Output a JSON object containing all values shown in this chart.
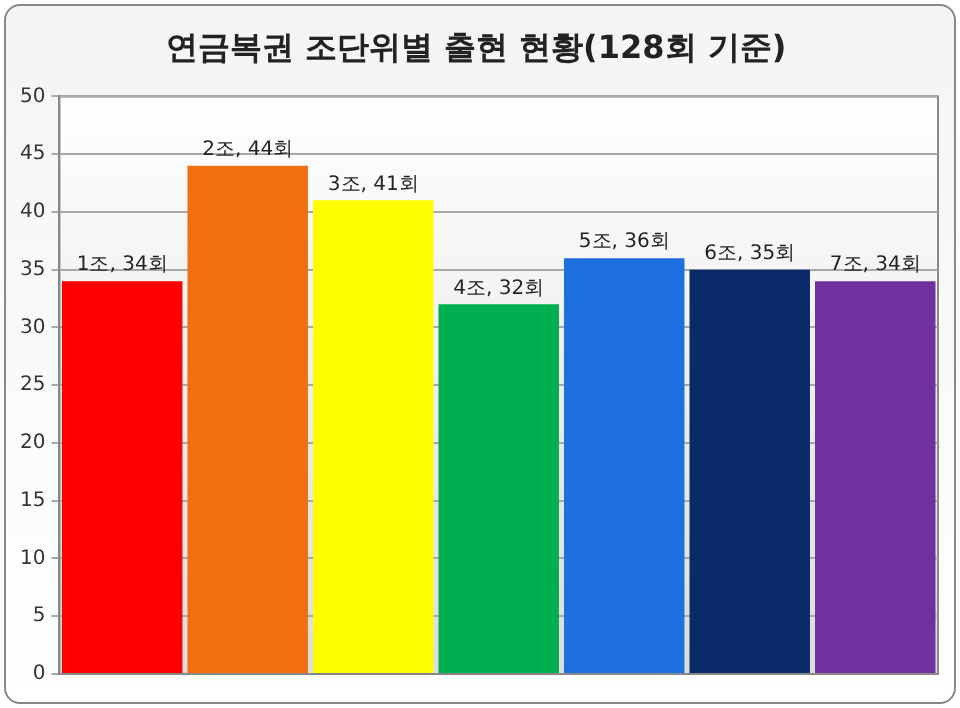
{
  "chart_data": {
    "type": "bar",
    "title": "연금복권 조단위별 출현 현황(128회 기준)",
    "categories": [
      null,
      null,
      null,
      null,
      null,
      null,
      null
    ],
    "values": [
      34,
      44,
      41,
      32,
      36,
      35,
      34
    ],
    "colors": [
      "#ff0000",
      "#f07010",
      "#ffff00",
      "#00b050",
      "#1e6fe0",
      "#0a2a6a",
      "#7030a0"
    ],
    "value_labels": [
      "1조, 34회",
      "2조, 44회",
      "3조, 41회",
      "4조, 32회",
      "5조, 36회",
      "6조, 35회",
      "7조, 34회"
    ],
    "ylim": [
      0,
      50
    ],
    "yticks": [
      0,
      5,
      10,
      15,
      20,
      25,
      30,
      35,
      40,
      45,
      50
    ],
    "grid": "y",
    "legend": false
  }
}
